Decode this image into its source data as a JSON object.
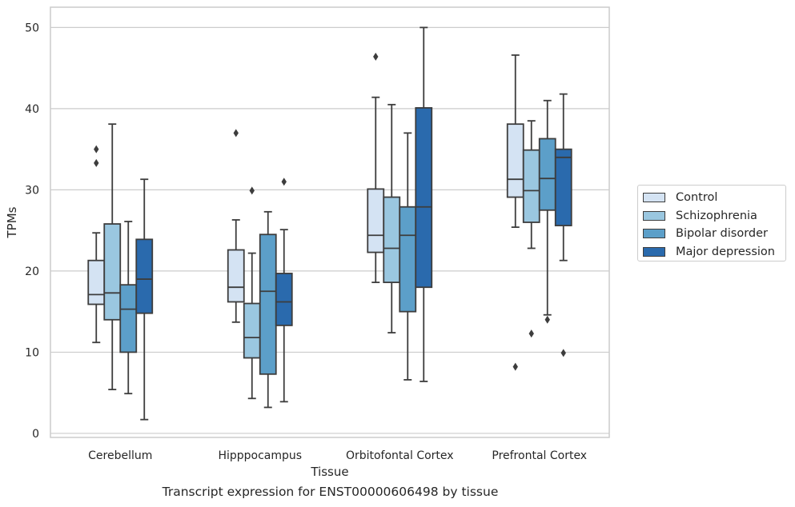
{
  "chart_data": {
    "type": "boxplot",
    "xlabel": "Tissue",
    "ylabel": "TPMs",
    "caption": "Transcript expression for ENST00000606498 by tissue",
    "ylim": [
      -0.5,
      52.5
    ],
    "yticks": [
      0,
      10,
      20,
      30,
      40,
      50
    ],
    "grid": true,
    "legend_position": "right",
    "categories": [
      "Cerebellum",
      "Hipppocampus",
      "Orbitofontal Cortex",
      "Prefrontal Cortex"
    ],
    "series": [
      {
        "name": "Control",
        "color": "#d4e3f3",
        "boxes": [
          {
            "whislo": 11.2,
            "q1": 15.9,
            "med": 17.1,
            "q3": 21.3,
            "whishi": 24.7,
            "fliers": [
              33.3,
              35.0
            ]
          },
          {
            "whislo": 13.7,
            "q1": 16.2,
            "med": 18.0,
            "q3": 22.6,
            "whishi": 26.3,
            "fliers": [
              37.0
            ]
          },
          {
            "whislo": 18.6,
            "q1": 22.3,
            "med": 24.4,
            "q3": 30.1,
            "whishi": 41.4,
            "fliers": [
              46.4
            ]
          },
          {
            "whislo": 25.4,
            "q1": 29.1,
            "med": 31.3,
            "q3": 38.1,
            "whishi": 46.6,
            "fliers": [
              8.2
            ]
          }
        ]
      },
      {
        "name": "Schizophrenia",
        "color": "#9ac7e0",
        "boxes": [
          {
            "whislo": 5.4,
            "q1": 14.0,
            "med": 17.3,
            "q3": 25.8,
            "whishi": 38.1,
            "fliers": []
          },
          {
            "whislo": 4.3,
            "q1": 9.3,
            "med": 11.8,
            "q3": 16.0,
            "whishi": 22.2,
            "fliers": [
              29.9
            ]
          },
          {
            "whislo": 12.4,
            "q1": 18.6,
            "med": 22.8,
            "q3": 29.1,
            "whishi": 40.5,
            "fliers": []
          },
          {
            "whislo": 22.8,
            "q1": 26.0,
            "med": 29.9,
            "q3": 34.9,
            "whishi": 38.5,
            "fliers": [
              12.3
            ]
          }
        ]
      },
      {
        "name": "Bipolar disorder",
        "color": "#5c9fc9",
        "boxes": [
          {
            "whislo": 4.9,
            "q1": 10.0,
            "med": 15.3,
            "q3": 18.3,
            "whishi": 26.1,
            "fliers": []
          },
          {
            "whislo": 3.2,
            "q1": 7.3,
            "med": 17.5,
            "q3": 24.5,
            "whishi": 27.3,
            "fliers": []
          },
          {
            "whislo": 6.6,
            "q1": 15.0,
            "med": 24.4,
            "q3": 27.9,
            "whishi": 37.0,
            "fliers": []
          },
          {
            "whislo": 14.6,
            "q1": 27.5,
            "med": 31.4,
            "q3": 36.3,
            "whishi": 41.0,
            "fliers": [
              14.0
            ]
          }
        ]
      },
      {
        "name": "Major depression",
        "color": "#2a6aad",
        "boxes": [
          {
            "whislo": 1.7,
            "q1": 14.8,
            "med": 19.0,
            "q3": 23.9,
            "whishi": 31.3,
            "fliers": []
          },
          {
            "whislo": 3.9,
            "q1": 13.3,
            "med": 16.2,
            "q3": 19.7,
            "whishi": 25.1,
            "fliers": [
              31.0
            ]
          },
          {
            "whislo": 6.4,
            "q1": 18.0,
            "med": 27.9,
            "q3": 40.1,
            "whishi": 50.0,
            "fliers": []
          },
          {
            "whislo": 21.3,
            "q1": 25.6,
            "med": 34.0,
            "q3": 35.0,
            "whishi": 41.8,
            "fliers": [
              9.9
            ]
          }
        ]
      }
    ]
  }
}
